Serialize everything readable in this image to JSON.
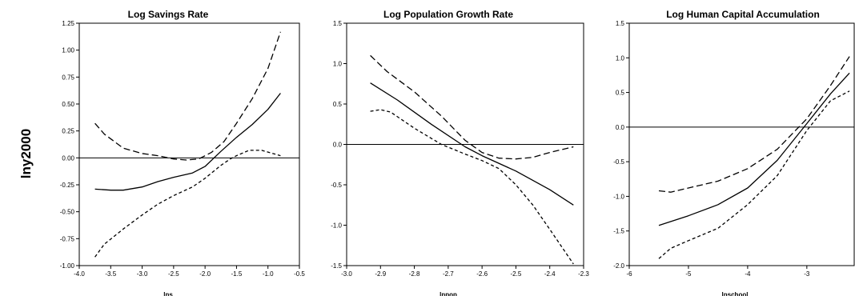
{
  "figure": {
    "ylabel": "lny2000"
  },
  "chart_data": [
    {
      "type": "line",
      "title": "Log Savings Rate",
      "xlabel": "lns",
      "ylabel": "lny2000",
      "xlim": [
        -4.0,
        -0.5
      ],
      "ylim": [
        -1.0,
        1.25
      ],
      "xticks": [
        -4.0,
        -3.5,
        -3.0,
        -2.5,
        -2.0,
        -1.5,
        -1.0,
        -0.5
      ],
      "yticks": [
        -1.0,
        -0.75,
        -0.5,
        -0.25,
        0.0,
        0.25,
        0.5,
        0.75,
        1.0,
        1.25
      ],
      "xtick_labels": [
        "-4.0",
        "-3.5",
        "-3.0",
        "-2.5",
        "-2.0",
        "-1.5",
        "-1.0",
        "-0.5"
      ],
      "ytick_labels": [
        "-1.00",
        "-0.75",
        "-0.50",
        "-0.25",
        "0.00",
        "0.25",
        "0.50",
        "0.75",
        "1.00",
        "1.25"
      ],
      "reference_line_y": 0,
      "series": [
        {
          "style": "solid",
          "x": [
            -3.75,
            -3.5,
            -3.3,
            -3.0,
            -2.75,
            -2.5,
            -2.2,
            -2.0,
            -1.75,
            -1.5,
            -1.25,
            -1.0,
            -0.8
          ],
          "y": [
            -0.29,
            -0.3,
            -0.3,
            -0.27,
            -0.22,
            -0.18,
            -0.14,
            -0.08,
            0.06,
            0.19,
            0.31,
            0.45,
            0.6
          ]
        },
        {
          "style": "dashed",
          "x": [
            -3.75,
            -3.6,
            -3.3,
            -3.0,
            -2.75,
            -2.5,
            -2.3,
            -2.1,
            -1.9,
            -1.7,
            -1.5,
            -1.25,
            -1.0,
            -0.8
          ],
          "y": [
            0.32,
            0.22,
            0.09,
            0.04,
            0.02,
            -0.01,
            -0.02,
            -0.01,
            0.05,
            0.15,
            0.32,
            0.55,
            0.83,
            1.17
          ]
        },
        {
          "style": "dotted",
          "x": [
            -3.75,
            -3.6,
            -3.3,
            -3.0,
            -2.75,
            -2.5,
            -2.2,
            -2.0,
            -1.75,
            -1.6,
            -1.5,
            -1.3,
            -1.1,
            -0.8
          ],
          "y": [
            -0.92,
            -0.8,
            -0.66,
            -0.53,
            -0.43,
            -0.35,
            -0.27,
            -0.19,
            -0.07,
            -0.01,
            0.02,
            0.07,
            0.07,
            0.02
          ]
        }
      ]
    },
    {
      "type": "line",
      "title": "Log Population Growth Rate",
      "xlabel": "lnpop",
      "ylabel": "lny2000",
      "xlim": [
        -3.0,
        -2.3
      ],
      "ylim": [
        -1.5,
        1.5
      ],
      "xticks": [
        -3.0,
        -2.9,
        -2.8,
        -2.7,
        -2.6,
        -2.5,
        -2.4,
        -2.3
      ],
      "yticks": [
        -1.5,
        -1.0,
        -0.5,
        0.0,
        0.5,
        1.0,
        1.5
      ],
      "xtick_labels": [
        "-3.0",
        "-2.9",
        "-2.8",
        "-2.7",
        "-2.6",
        "-2.5",
        "-2.4",
        "-2.3"
      ],
      "ytick_labels": [
        "-1.5",
        "-1.0",
        "-0.5",
        "0.0",
        "0.5",
        "1.0",
        "1.5"
      ],
      "reference_line_y": 0,
      "series": [
        {
          "style": "solid",
          "x": [
            -2.93,
            -2.85,
            -2.75,
            -2.65,
            -2.6,
            -2.5,
            -2.4,
            -2.33
          ],
          "y": [
            0.76,
            0.55,
            0.25,
            -0.03,
            -0.14,
            -0.33,
            -0.56,
            -0.75
          ]
        },
        {
          "style": "dashed",
          "x": [
            -2.93,
            -2.88,
            -2.8,
            -2.72,
            -2.65,
            -2.6,
            -2.55,
            -2.5,
            -2.45,
            -2.4,
            -2.33
          ],
          "y": [
            1.1,
            0.9,
            0.65,
            0.35,
            0.05,
            -0.1,
            -0.17,
            -0.18,
            -0.16,
            -0.1,
            -0.03
          ]
        },
        {
          "style": "dotted",
          "x": [
            -2.93,
            -2.9,
            -2.87,
            -2.8,
            -2.72,
            -2.65,
            -2.6,
            -2.55,
            -2.5,
            -2.45,
            -2.4,
            -2.33
          ],
          "y": [
            0.41,
            0.43,
            0.4,
            0.2,
            0.0,
            -0.12,
            -0.2,
            -0.3,
            -0.5,
            -0.75,
            -1.05,
            -1.48
          ]
        }
      ]
    },
    {
      "type": "line",
      "title": "Log Human Capital Accumulation",
      "xlabel": "lnschool",
      "ylabel": "lny2000",
      "xlim": [
        -6,
        -2.2
      ],
      "ylim": [
        -2.0,
        1.5
      ],
      "xticks": [
        -6,
        -5,
        -4,
        -3
      ],
      "yticks": [
        -2.0,
        -1.5,
        -1.0,
        -0.5,
        0.0,
        0.5,
        1.0,
        1.5
      ],
      "xtick_labels": [
        "-6",
        "-5",
        "-4",
        "-3"
      ],
      "ytick_labels": [
        "-2.0",
        "-1.5",
        "-1.0",
        "-0.5",
        "0.0",
        "0.5",
        "1.0",
        "1.5"
      ],
      "reference_line_y": 0,
      "series": [
        {
          "style": "solid",
          "x": [
            -5.5,
            -5.0,
            -4.5,
            -4.0,
            -3.5,
            -3.0,
            -2.6,
            -2.28
          ],
          "y": [
            -1.42,
            -1.28,
            -1.12,
            -0.88,
            -0.48,
            0.05,
            0.48,
            0.78
          ]
        },
        {
          "style": "dashed",
          "x": [
            -5.5,
            -5.3,
            -5.0,
            -4.5,
            -4.0,
            -3.5,
            -3.0,
            -2.6,
            -2.28
          ],
          "y": [
            -0.92,
            -0.94,
            -0.88,
            -0.78,
            -0.6,
            -0.32,
            0.12,
            0.6,
            1.02
          ]
        },
        {
          "style": "dotted",
          "x": [
            -5.5,
            -5.3,
            -5.0,
            -4.5,
            -4.0,
            -3.5,
            -3.0,
            -2.6,
            -2.28
          ],
          "y": [
            -1.9,
            -1.75,
            -1.64,
            -1.46,
            -1.12,
            -0.7,
            -0.05,
            0.38,
            0.52
          ]
        }
      ]
    }
  ]
}
